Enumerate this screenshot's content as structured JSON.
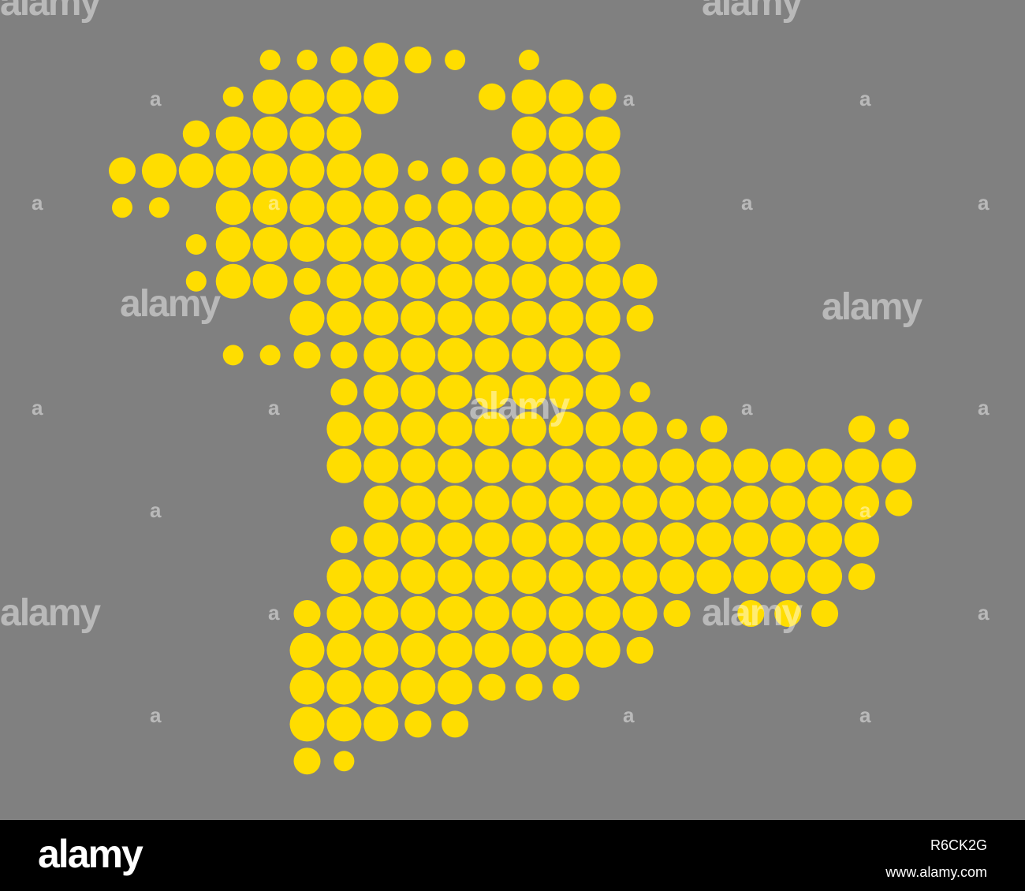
{
  "map": {
    "background_color": "#808080",
    "dot_color": "#FFDD00",
    "dot_sizes": {
      "L": "large",
      "M": "medium",
      "S": "small"
    },
    "dot_grid": [
      "....SSMLMS.S..........",
      "...SLLLL..MLLM........",
      "..MLLLL....LLL........",
      "MLLLLLLLSMMLLL........",
      "SS.LLLLLMLLLLL........",
      "..SLLLLLLLLLLL........",
      "..SLLMLLLLLLLLL.......",
      ".....LLLLLLLLLM.......",
      "...SSMMLLLLLLL........",
      "......MLLLLLLLS.......",
      "......LLLLLLLLLSM...MS",
      "......LLLLLLLLLLLLLLLL",
      ".......LLLLLLLLLLLLLLM",
      "......MLLLLLLLLLLLLLL.",
      "......LLLLLLLLLLLLLLM.",
      ".....MLLLLLLLLLM.MMM..",
      ".....LLLLLLLLLM.......",
      ".....LLLLLMMM.........",
      ".....LLLMM............",
      ".....MS..............."
    ]
  },
  "watermark": {
    "text": "alamy",
    "small": "a"
  },
  "footer": {
    "logo": "alamy",
    "image_id": "R6CK2G",
    "url": "www.alamy.com"
  }
}
